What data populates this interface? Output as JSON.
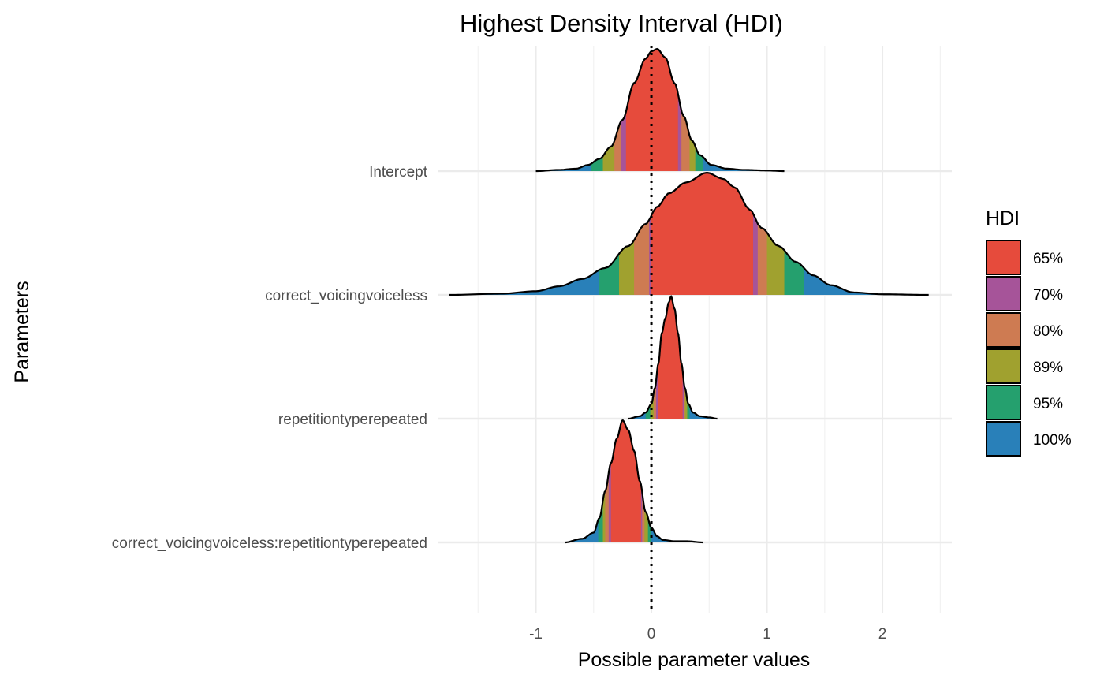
{
  "chart_data": {
    "type": "ridgeline-density",
    "title": "Highest Density Interval (HDI)",
    "xlabel": "Possible parameter values",
    "ylabel": "Parameters",
    "xlim": [
      -1.85,
      2.6
    ],
    "x_ticks": [
      -1,
      0,
      1,
      2
    ],
    "x_tick_labels": [
      "-1",
      "0",
      "1",
      "2"
    ],
    "reference_line": 0,
    "grid": true,
    "legend": {
      "title": "HDI",
      "placement": "right",
      "items": [
        {
          "label": "65%",
          "color": "#E64B3C"
        },
        {
          "label": "70%",
          "color": "#A65499"
        },
        {
          "label": "80%",
          "color": "#CE7B52"
        },
        {
          "label": "89%",
          "color": "#A0A12F"
        },
        {
          "label": "95%",
          "color": "#25A06E"
        },
        {
          "label": "100%",
          "color": "#2980B9"
        }
      ]
    },
    "parameters": [
      {
        "name": "Intercept",
        "range": [
          -1.0,
          1.15
        ],
        "peak": 0.03,
        "hdi": {
          "65": [
            -0.22,
            0.23
          ],
          "70": [
            -0.26,
            0.26
          ],
          "80": [
            -0.32,
            0.33
          ],
          "89": [
            -0.42,
            0.38
          ],
          "95": [
            -0.52,
            0.45
          ],
          "100": [
            -1.0,
            1.15
          ]
        },
        "density": [
          [
            -1.0,
            0.0
          ],
          [
            -0.8,
            0.01
          ],
          [
            -0.65,
            0.02
          ],
          [
            -0.55,
            0.05
          ],
          [
            -0.45,
            0.1
          ],
          [
            -0.35,
            0.2
          ],
          [
            -0.25,
            0.42
          ],
          [
            -0.15,
            0.72
          ],
          [
            -0.05,
            0.92
          ],
          [
            0.0,
            0.98
          ],
          [
            0.05,
            1.0
          ],
          [
            0.12,
            0.93
          ],
          [
            0.2,
            0.72
          ],
          [
            0.28,
            0.45
          ],
          [
            0.35,
            0.25
          ],
          [
            0.42,
            0.13
          ],
          [
            0.52,
            0.05
          ],
          [
            0.65,
            0.02
          ],
          [
            0.8,
            0.01
          ],
          [
            1.0,
            0.005
          ],
          [
            1.15,
            0.0
          ]
        ]
      },
      {
        "name": "correct_voicingvoiceless",
        "range": [
          -1.75,
          2.4
        ],
        "peak": 0.48,
        "hdi": {
          "65": [
            0.0,
            0.88
          ],
          "70": [
            -0.02,
            0.92
          ],
          "80": [
            -0.15,
            1.0
          ],
          "89": [
            -0.28,
            1.15
          ],
          "95": [
            -0.45,
            1.32
          ],
          "100": [
            -1.75,
            2.4
          ]
        },
        "density": [
          [
            -1.75,
            0.0
          ],
          [
            -1.3,
            0.01
          ],
          [
            -1.0,
            0.03
          ],
          [
            -0.8,
            0.07
          ],
          [
            -0.6,
            0.13
          ],
          [
            -0.4,
            0.22
          ],
          [
            -0.2,
            0.4
          ],
          [
            -0.05,
            0.58
          ],
          [
            0.05,
            0.72
          ],
          [
            0.15,
            0.83
          ],
          [
            0.3,
            0.92
          ],
          [
            0.48,
            1.0
          ],
          [
            0.62,
            0.95
          ],
          [
            0.72,
            0.88
          ],
          [
            0.85,
            0.7
          ],
          [
            0.95,
            0.55
          ],
          [
            1.1,
            0.4
          ],
          [
            1.25,
            0.27
          ],
          [
            1.4,
            0.16
          ],
          [
            1.55,
            0.08
          ],
          [
            1.75,
            0.02
          ],
          [
            2.0,
            0.005
          ],
          [
            2.4,
            0.0
          ]
        ]
      },
      {
        "name": "repetitiontyperepeated",
        "range": [
          -0.2,
          0.57
        ],
        "peak": 0.17,
        "hdi": {
          "65": [
            0.06,
            0.27
          ],
          "70": [
            0.04,
            0.28
          ],
          "80": [
            0.02,
            0.29
          ],
          "89": [
            -0.01,
            0.31
          ],
          "95": [
            -0.05,
            0.33
          ],
          "100": [
            -0.2,
            0.57
          ]
        },
        "density": [
          [
            -0.2,
            0.0
          ],
          [
            -0.1,
            0.02
          ],
          [
            -0.05,
            0.05
          ],
          [
            0.0,
            0.12
          ],
          [
            0.03,
            0.25
          ],
          [
            0.06,
            0.45
          ],
          [
            0.09,
            0.7
          ],
          [
            0.12,
            0.82
          ],
          [
            0.15,
            0.95
          ],
          [
            0.17,
            1.0
          ],
          [
            0.2,
            0.9
          ],
          [
            0.23,
            0.7
          ],
          [
            0.26,
            0.45
          ],
          [
            0.29,
            0.25
          ],
          [
            0.32,
            0.12
          ],
          [
            0.36,
            0.05
          ],
          [
            0.42,
            0.02
          ],
          [
            0.5,
            0.01
          ],
          [
            0.57,
            0.0
          ]
        ]
      },
      {
        "name": "correct_voicingvoiceless:repetitiontyperepeated",
        "range": [
          -0.75,
          0.45
        ],
        "peak": -0.25,
        "hdi": {
          "65": [
            -0.35,
            -0.09
          ],
          "70": [
            -0.37,
            -0.08
          ],
          "80": [
            -0.4,
            -0.06
          ],
          "89": [
            -0.42,
            -0.03
          ],
          "95": [
            -0.46,
            0.0
          ],
          "100": [
            -0.75,
            0.45
          ]
        },
        "density": [
          [
            -0.75,
            0.0
          ],
          [
            -0.6,
            0.03
          ],
          [
            -0.5,
            0.08
          ],
          [
            -0.45,
            0.2
          ],
          [
            -0.4,
            0.42
          ],
          [
            -0.35,
            0.65
          ],
          [
            -0.3,
            0.85
          ],
          [
            -0.25,
            1.0
          ],
          [
            -0.2,
            0.92
          ],
          [
            -0.15,
            0.75
          ],
          [
            -0.1,
            0.5
          ],
          [
            -0.05,
            0.25
          ],
          [
            0.0,
            0.12
          ],
          [
            0.05,
            0.05
          ],
          [
            0.1,
            0.02
          ],
          [
            0.2,
            0.01
          ],
          [
            0.3,
            0.01
          ],
          [
            0.45,
            0.0
          ]
        ]
      }
    ]
  }
}
